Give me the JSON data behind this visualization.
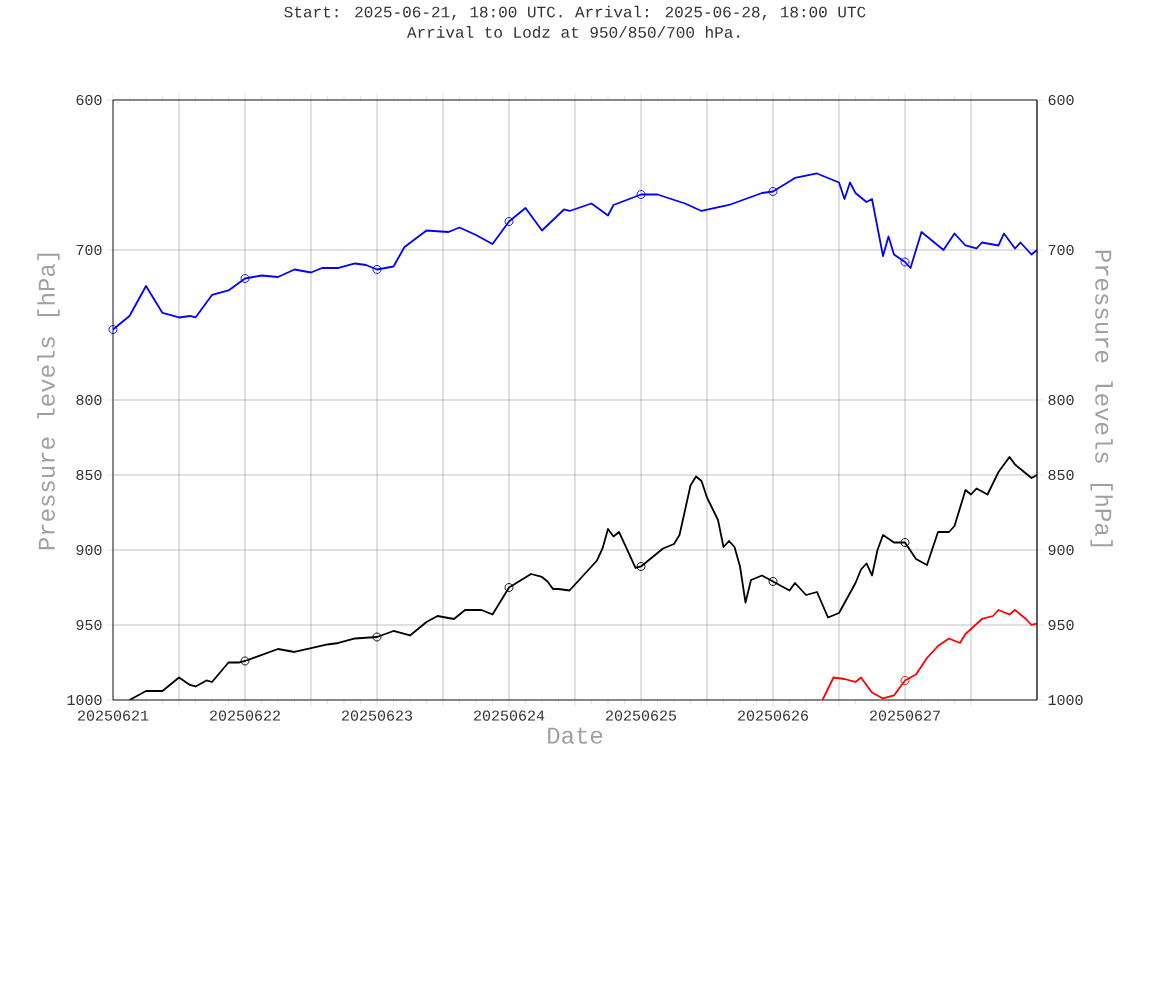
{
  "chart_data": {
    "type": "line",
    "title": "Start: 2025-06-21, 18:00 UTC. Arrival: 2025-06-28, 18:00 UTC",
    "subtitle": "Arrival to Lodz at 950/850/700 hPa.",
    "xlabel": "Date",
    "ylabel": "Pressure levels [hPa]",
    "y2label": "Pressure levels [hPa]",
    "xlim": [
      "2025-06-21",
      "2025-06-28"
    ],
    "xticks": [
      {
        "value": "2025-06-21",
        "label": "20250621"
      },
      {
        "value": "2025-06-21T12:00",
        "label": null
      },
      {
        "value": "2025-06-22",
        "label": "20250622"
      },
      {
        "value": "2025-06-22T12:00",
        "label": null
      },
      {
        "value": "2025-06-23",
        "label": "20250623"
      },
      {
        "value": "2025-06-23T12:00",
        "label": null
      },
      {
        "value": "2025-06-24",
        "label": "20250624"
      },
      {
        "value": "2025-06-24T12:00",
        "label": null
      },
      {
        "value": "2025-06-25",
        "label": "20250625"
      },
      {
        "value": "2025-06-25T12:00",
        "label": null
      },
      {
        "value": "2025-06-26",
        "label": "20250626"
      },
      {
        "value": "2025-06-26T12:00",
        "label": null
      },
      {
        "value": "2025-06-27",
        "label": "20250627"
      },
      {
        "value": "2025-06-27T12:00",
        "label": null
      }
    ],
    "ylim": [
      1000,
      600
    ],
    "yticks": [
      600,
      700,
      800,
      850,
      900,
      950,
      1000
    ],
    "y2lim": [
      1000,
      600
    ],
    "y2ticks": [
      600,
      700,
      800,
      850,
      900,
      950,
      1000
    ],
    "grid": true,
    "marker": "none",
    "line_style": "solid",
    "series": [
      {
        "color": "#0000ff",
        "x": [
          "2025-06-21T00:00",
          "2025-06-21T03:00",
          "2025-06-21T06:00",
          "2025-06-21T09:00",
          "2025-06-21T12:00",
          "2025-06-21T14:00",
          "2025-06-21T15:00",
          "2025-06-21T18:00",
          "2025-06-21T21:00",
          "2025-06-22T00:00",
          "2025-06-22T03:00",
          "2025-06-22T06:00",
          "2025-06-22T09:00",
          "2025-06-22T12:00",
          "2025-06-22T14:00",
          "2025-06-22T17:00",
          "2025-06-22T20:00",
          "2025-06-22T22:00",
          "2025-06-23T00:00",
          "2025-06-23T03:00",
          "2025-06-23T05:00",
          "2025-06-23T09:00",
          "2025-06-23T13:00",
          "2025-06-23T15:00",
          "2025-06-23T18:00",
          "2025-06-23T21:00",
          "2025-06-24T00:00",
          "2025-06-24T03:00",
          "2025-06-24T06:00",
          "2025-06-24T10:00",
          "2025-06-24T11:00",
          "2025-06-24T15:00",
          "2025-06-24T18:00",
          "2025-06-24T19:00",
          "2025-06-25T00:00",
          "2025-06-25T03:00",
          "2025-06-25T08:00",
          "2025-06-25T11:00",
          "2025-06-25T16:00",
          "2025-06-25T22:00",
          "2025-06-26T00:00",
          "2025-06-26T04:00",
          "2025-06-26T08:00",
          "2025-06-26T12:00",
          "2025-06-26T13:00",
          "2025-06-26T14:00",
          "2025-06-26T15:00",
          "2025-06-26T17:00",
          "2025-06-26T18:00",
          "2025-06-26T19:00",
          "2025-06-26T20:00",
          "2025-06-26T21:00",
          "2025-06-26T22:00",
          "2025-06-27T00:00",
          "2025-06-27T01:00",
          "2025-06-27T03:00",
          "2025-06-27T06:00",
          "2025-06-27T07:00",
          "2025-06-27T09:00",
          "2025-06-27T11:00",
          "2025-06-27T13:00",
          "2025-06-27T14:00",
          "2025-06-27T17:00",
          "2025-06-27T18:00",
          "2025-06-27T20:00",
          "2025-06-27T21:00",
          "2025-06-27T23:00",
          "2025-06-28T00:00"
        ],
        "values": [
          753,
          744,
          724,
          742,
          745,
          744,
          745,
          730,
          727,
          719,
          717,
          718,
          713,
          715,
          712,
          712,
          709,
          710,
          713,
          711,
          698,
          687,
          688,
          685,
          690,
          696,
          681,
          672,
          687,
          673,
          674,
          669,
          677,
          670,
          663,
          663,
          669,
          674,
          670,
          662,
          661,
          652,
          649,
          655,
          666,
          655,
          662,
          668,
          666,
          685,
          704,
          691,
          703,
          708,
          712,
          688,
          697,
          700,
          689,
          697,
          699,
          695,
          697,
          689,
          699,
          695,
          703,
          700
        ]
      },
      {
        "color": "#000000",
        "x": [
          "2025-06-21T03:00",
          "2025-06-21T06:00",
          "2025-06-21T09:00",
          "2025-06-21T12:00",
          "2025-06-21T14:00",
          "2025-06-21T15:00",
          "2025-06-21T17:00",
          "2025-06-21T18:00",
          "2025-06-21T21:00",
          "2025-06-21T23:00",
          "2025-06-22T00:00",
          "2025-06-22T06:00",
          "2025-06-22T09:00",
          "2025-06-22T15:00",
          "2025-06-22T17:00",
          "2025-06-22T20:00",
          "2025-06-23T00:00",
          "2025-06-23T03:00",
          "2025-06-23T06:00",
          "2025-06-23T09:00",
          "2025-06-23T11:00",
          "2025-06-23T14:00",
          "2025-06-23T16:00",
          "2025-06-23T19:00",
          "2025-06-23T21:00",
          "2025-06-24T00:00",
          "2025-06-24T04:00",
          "2025-06-24T06:00",
          "2025-06-24T07:00",
          "2025-06-24T08:00",
          "2025-06-24T09:00",
          "2025-06-24T11:00",
          "2025-06-24T13:00",
          "2025-06-24T14:00",
          "2025-06-24T16:00",
          "2025-06-24T17:00",
          "2025-06-24T18:00",
          "2025-06-24T19:00",
          "2025-06-24T20:00",
          "2025-06-24T23:00",
          "2025-06-25T00:00",
          "2025-06-25T04:00",
          "2025-06-25T06:00",
          "2025-06-25T07:00",
          "2025-06-25T09:00",
          "2025-06-25T10:00",
          "2025-06-25T11:00",
          "2025-06-25T12:00",
          "2025-06-25T14:00",
          "2025-06-25T15:00",
          "2025-06-25T16:00",
          "2025-06-25T17:00",
          "2025-06-25T18:00",
          "2025-06-25T19:00",
          "2025-06-25T20:00",
          "2025-06-25T22:00",
          "2025-06-26T00:00",
          "2025-06-26T03:00",
          "2025-06-26T04:00",
          "2025-06-26T06:00",
          "2025-06-26T08:00",
          "2025-06-26T10:00",
          "2025-06-26T12:00",
          "2025-06-26T15:00",
          "2025-06-26T16:00",
          "2025-06-26T17:00",
          "2025-06-26T18:00",
          "2025-06-26T19:00",
          "2025-06-26T20:00",
          "2025-06-26T22:00",
          "2025-06-27T00:00",
          "2025-06-27T02:00",
          "2025-06-27T04:00",
          "2025-06-27T06:00",
          "2025-06-27T08:00",
          "2025-06-27T09:00",
          "2025-06-27T11:00",
          "2025-06-27T12:00",
          "2025-06-27T13:00",
          "2025-06-27T15:00",
          "2025-06-27T17:00",
          "2025-06-27T19:00",
          "2025-06-27T20:00",
          "2025-06-27T22:00",
          "2025-06-27T23:00",
          "2025-06-28T00:00"
        ],
        "values": [
          1000,
          994,
          994,
          985,
          990,
          991,
          987,
          988,
          975,
          975,
          974,
          966,
          968,
          963,
          962,
          959,
          958,
          954,
          957,
          948,
          944,
          946,
          940,
          940,
          943,
          925,
          916,
          918,
          921,
          926,
          926,
          927,
          919,
          915,
          907,
          899,
          886,
          891,
          888,
          912,
          911,
          899,
          896,
          890,
          857,
          851,
          854,
          865,
          880,
          898,
          894,
          898,
          911,
          935,
          920,
          917,
          921,
          927,
          922,
          930,
          928,
          945,
          942,
          922,
          913,
          909,
          917,
          900,
          890,
          895,
          895,
          906,
          910,
          888,
          888,
          884,
          860,
          863,
          859,
          863,
          848,
          838,
          843,
          849,
          852,
          850
        ]
      },
      {
        "color": "#ff0000",
        "x": [
          "2025-06-26T09:00",
          "2025-06-26T11:00",
          "2025-06-26T13:00",
          "2025-06-26T15:00",
          "2025-06-26T16:00",
          "2025-06-26T18:00",
          "2025-06-26T20:00",
          "2025-06-26T22:00",
          "2025-06-27T00:00",
          "2025-06-27T02:00",
          "2025-06-27T04:00",
          "2025-06-27T06:00",
          "2025-06-27T08:00",
          "2025-06-27T10:00",
          "2025-06-27T11:00",
          "2025-06-27T14:00",
          "2025-06-27T16:00",
          "2025-06-27T17:00",
          "2025-06-27T19:00",
          "2025-06-27T20:00",
          "2025-06-27T22:00",
          "2025-06-27T23:00",
          "2025-06-28T00:00"
        ],
        "values": [
          1000,
          985,
          986,
          988,
          985,
          995,
          999,
          997,
          987,
          983,
          972,
          964,
          959,
          962,
          956,
          946,
          944,
          940,
          943,
          940,
          946,
          950,
          949
        ]
      },
      {
        "type": "scatter",
        "marker": "circle",
        "color": "#0000ff",
        "x": [
          "2025-06-21T00:00",
          "2025-06-22T00:00",
          "2025-06-23T00:00",
          "2025-06-24T00:00",
          "2025-06-25T00:00",
          "2025-06-26T00:00",
          "2025-06-27T00:00"
        ],
        "values": [
          753,
          719,
          713,
          681,
          663,
          661,
          708
        ]
      },
      {
        "type": "scatter",
        "marker": "circle",
        "color": "#000000",
        "x": [
          "2025-06-22T00:00",
          "2025-06-23T00:00",
          "2025-06-24T00:00",
          "2025-06-25T00:00",
          "2025-06-26T00:00",
          "2025-06-27T00:00"
        ],
        "values": [
          974,
          958,
          925,
          911,
          921,
          895
        ]
      },
      {
        "type": "scatter",
        "marker": "circle",
        "color": "#ff0000",
        "x": [
          "2025-06-27T00:00"
        ],
        "values": [
          987
        ]
      }
    ]
  }
}
